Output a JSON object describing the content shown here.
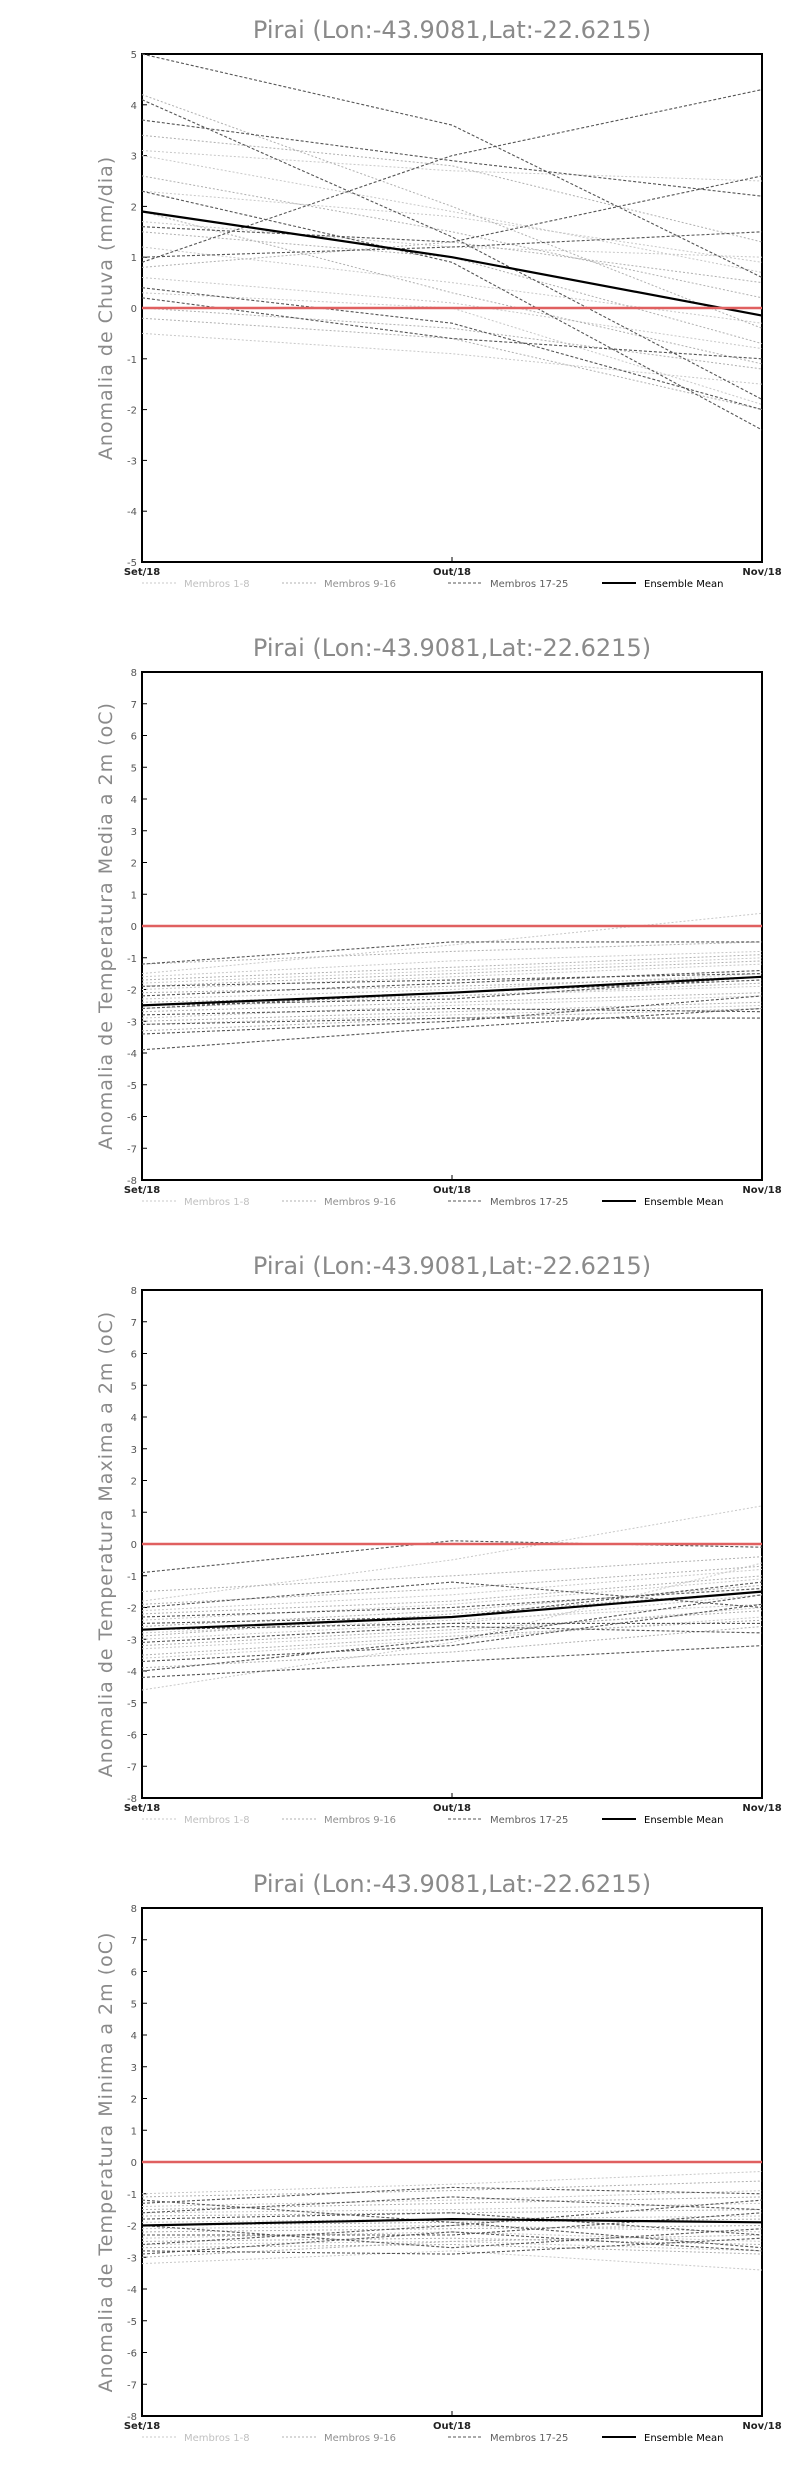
{
  "chart_data": [
    {
      "type": "line",
      "title": "Pirai (Lon:-43.9081,Lat:-22.6215)",
      "ylabel": "Anomalia de Chuva (mm/dia)",
      "x": [
        "Set/18",
        "Out/18",
        "Nov/18"
      ],
      "ylim": [
        -5,
        5
      ],
      "yticks": [
        -5,
        -4,
        -3,
        -2,
        -1,
        0,
        1,
        2,
        3,
        4,
        5
      ],
      "reference_value": 0,
      "legend": [
        "Membros 1-8",
        "Membros 9-16",
        "Membros 17-25",
        "Ensemble Mean"
      ],
      "series": [
        {
          "group": 0,
          "values": [
            3.1,
            2.7,
            2.5
          ]
        },
        {
          "group": 0,
          "values": [
            2.3,
            1.8,
            0.9
          ]
        },
        {
          "group": 0,
          "values": [
            1.2,
            0.5,
            -0.3
          ]
        },
        {
          "group": 0,
          "values": [
            0.6,
            0.1,
            -0.8
          ]
        },
        {
          "group": 0,
          "values": [
            -0.5,
            -0.9,
            -1.5
          ]
        },
        {
          "group": 0,
          "values": [
            3.0,
            1.9,
            0.7
          ]
        },
        {
          "group": 0,
          "values": [
            1.7,
            1.2,
            1.0
          ]
        },
        {
          "group": 0,
          "values": [
            0.3,
            0.0,
            -1.9
          ]
        },
        {
          "group": 1,
          "values": [
            4.2,
            2.0,
            -0.4
          ]
        },
        {
          "group": 1,
          "values": [
            2.6,
            1.5,
            0.2
          ]
        },
        {
          "group": 1,
          "values": [
            1.9,
            0.3,
            -1.1
          ]
        },
        {
          "group": 1,
          "values": [
            0.8,
            1.3,
            0.5
          ]
        },
        {
          "group": 1,
          "values": [
            0.0,
            -0.4,
            -1.2
          ]
        },
        {
          "group": 1,
          "values": [
            1.5,
            1.0,
            -0.7
          ]
        },
        {
          "group": 1,
          "values": [
            3.4,
            2.8,
            1.3
          ]
        },
        {
          "group": 1,
          "values": [
            -0.2,
            -0.6,
            -2.0
          ]
        },
        {
          "group": 2,
          "values": [
            5.0,
            3.6,
            0.6
          ]
        },
        {
          "group": 2,
          "values": [
            3.7,
            2.9,
            2.2
          ]
        },
        {
          "group": 2,
          "values": [
            4.1,
            1.4,
            -1.8
          ]
        },
        {
          "group": 2,
          "values": [
            2.3,
            0.9,
            -2.4
          ]
        },
        {
          "group": 2,
          "values": [
            1.6,
            1.3,
            2.6
          ]
        },
        {
          "group": 2,
          "values": [
            0.9,
            3.0,
            4.3
          ]
        },
        {
          "group": 2,
          "values": [
            0.4,
            -0.3,
            -2.0
          ]
        },
        {
          "group": 2,
          "values": [
            1.0,
            1.2,
            1.5
          ]
        },
        {
          "group": 2,
          "values": [
            0.2,
            -0.6,
            -1.0
          ]
        },
        {
          "group": 3,
          "values": [
            1.9,
            1.0,
            -0.15
          ]
        }
      ]
    },
    {
      "type": "line",
      "title": "Pirai (Lon:-43.9081,Lat:-22.6215)",
      "ylabel": "Anomalia de Temperatura Media a 2m (oC)",
      "x": [
        "Set/18",
        "Out/18",
        "Nov/18"
      ],
      "ylim": [
        -8,
        8
      ],
      "yticks": [
        -8,
        -7,
        -6,
        -5,
        -4,
        -3,
        -2,
        -1,
        0,
        1,
        2,
        3,
        4,
        5,
        6,
        7,
        8
      ],
      "reference_value": 0,
      "legend": [
        "Membros 1-8",
        "Membros 9-16",
        "Membros 17-25",
        "Ensemble Mean"
      ],
      "series": [
        {
          "group": 0,
          "values": [
            -1.5,
            -0.6,
            0.4
          ]
        },
        {
          "group": 0,
          "values": [
            -2.0,
            -1.6,
            -1.2
          ]
        },
        {
          "group": 0,
          "values": [
            -2.6,
            -2.2,
            -1.9
          ]
        },
        {
          "group": 0,
          "values": [
            -3.1,
            -2.8,
            -2.5
          ]
        },
        {
          "group": 0,
          "values": [
            -1.8,
            -1.4,
            -1.0
          ]
        },
        {
          "group": 0,
          "values": [
            -2.3,
            -2.0,
            -1.5
          ]
        },
        {
          "group": 0,
          "values": [
            -2.9,
            -2.5,
            -2.2
          ]
        },
        {
          "group": 0,
          "values": [
            -1.6,
            -1.1,
            -0.8
          ]
        },
        {
          "group": 1,
          "values": [
            -1.2,
            -0.8,
            -0.5
          ]
        },
        {
          "group": 1,
          "values": [
            -2.1,
            -1.9,
            -1.6
          ]
        },
        {
          "group": 1,
          "values": [
            -2.7,
            -2.4,
            -2.1
          ]
        },
        {
          "group": 1,
          "values": [
            -3.3,
            -2.9,
            -2.6
          ]
        },
        {
          "group": 1,
          "values": [
            -1.9,
            -1.5,
            -1.1
          ]
        },
        {
          "group": 1,
          "values": [
            -2.4,
            -2.2,
            -1.8
          ]
        },
        {
          "group": 1,
          "values": [
            -3.0,
            -2.7,
            -2.4
          ]
        },
        {
          "group": 1,
          "values": [
            -1.7,
            -1.3,
            -0.9
          ]
        },
        {
          "group": 2,
          "values": [
            -3.9,
            -3.2,
            -2.6
          ]
        },
        {
          "group": 2,
          "values": [
            -1.2,
            -0.5,
            -0.5
          ]
        },
        {
          "group": 2,
          "values": [
            -2.5,
            -2.3,
            -1.6
          ]
        },
        {
          "group": 2,
          "values": [
            -3.1,
            -2.9,
            -2.9
          ]
        },
        {
          "group": 2,
          "values": [
            -2.2,
            -1.8,
            -1.4
          ]
        },
        {
          "group": 2,
          "values": [
            -2.8,
            -2.6,
            -2.7
          ]
        },
        {
          "group": 2,
          "values": [
            -1.9,
            -1.7,
            -1.5
          ]
        },
        {
          "group": 2,
          "values": [
            -3.4,
            -3.0,
            -2.2
          ]
        },
        {
          "group": 2,
          "values": [
            -2.6,
            -2.1,
            -1.7
          ]
        },
        {
          "group": 3,
          "values": [
            -2.5,
            -2.1,
            -1.6
          ]
        }
      ]
    },
    {
      "type": "line",
      "title": "Pirai (Lon:-43.9081,Lat:-22.6215)",
      "ylabel": "Anomalia de Temperatura Maxima a 2m (oC)",
      "x": [
        "Set/18",
        "Out/18",
        "Nov/18"
      ],
      "ylim": [
        -8,
        8
      ],
      "yticks": [
        -8,
        -7,
        -6,
        -5,
        -4,
        -3,
        -2,
        -1,
        0,
        1,
        2,
        3,
        4,
        5,
        6,
        7,
        8
      ],
      "reference_value": 0,
      "legend": [
        "Membros 1-8",
        "Membros 9-16",
        "Membros 17-25",
        "Ensemble Mean"
      ],
      "series": [
        {
          "group": 0,
          "values": [
            -1.8,
            -0.5,
            1.2
          ]
        },
        {
          "group": 0,
          "values": [
            -2.4,
            -1.9,
            -1.1
          ]
        },
        {
          "group": 0,
          "values": [
            -3.0,
            -2.5,
            -1.6
          ]
        },
        {
          "group": 0,
          "values": [
            -3.6,
            -3.0,
            -2.3
          ]
        },
        {
          "group": 0,
          "values": [
            -4.6,
            -3.1,
            -0.6
          ]
        },
        {
          "group": 0,
          "values": [
            -2.1,
            -1.6,
            -0.8
          ]
        },
        {
          "group": 0,
          "values": [
            -2.8,
            -2.4,
            -1.9
          ]
        },
        {
          "group": 0,
          "values": [
            -3.3,
            -2.8,
            -2.0
          ]
        },
        {
          "group": 1,
          "values": [
            -1.5,
            -1.0,
            -0.4
          ]
        },
        {
          "group": 1,
          "values": [
            -2.6,
            -2.1,
            -1.3
          ]
        },
        {
          "group": 1,
          "values": [
            -3.2,
            -2.7,
            -2.1
          ]
        },
        {
          "group": 1,
          "values": [
            -3.9,
            -3.4,
            -2.6
          ]
        },
        {
          "group": 1,
          "values": [
            -2.2,
            -1.8,
            -1.0
          ]
        },
        {
          "group": 1,
          "values": [
            -2.9,
            -2.2,
            -1.5
          ]
        },
        {
          "group": 1,
          "values": [
            -3.5,
            -2.9,
            -2.4
          ]
        },
        {
          "group": 1,
          "values": [
            -1.9,
            -1.4,
            -0.7
          ]
        },
        {
          "group": 2,
          "values": [
            -0.9,
            0.1,
            -0.1
          ]
        },
        {
          "group": 2,
          "values": [
            -4.2,
            -3.7,
            -3.2
          ]
        },
        {
          "group": 2,
          "values": [
            -2.5,
            -2.3,
            -1.2
          ]
        },
        {
          "group": 2,
          "values": [
            -3.1,
            -2.6,
            -2.8
          ]
        },
        {
          "group": 2,
          "values": [
            -2.0,
            -1.2,
            -2.0
          ]
        },
        {
          "group": 2,
          "values": [
            -3.7,
            -3.2,
            -1.9
          ]
        },
        {
          "group": 2,
          "values": [
            -2.7,
            -2.5,
            -2.5
          ]
        },
        {
          "group": 2,
          "values": [
            -4.0,
            -3.0,
            -1.6
          ]
        },
        {
          "group": 2,
          "values": [
            -2.3,
            -2.0,
            -1.4
          ]
        },
        {
          "group": 3,
          "values": [
            -2.7,
            -2.3,
            -1.5
          ]
        }
      ]
    },
    {
      "type": "line",
      "title": "Pirai (Lon:-43.9081,Lat:-22.6215)",
      "ylabel": "Anomalia de Temperatura Minima a 2m (oC)",
      "x": [
        "Set/18",
        "Out/18",
        "Nov/18"
      ],
      "ylim": [
        -8,
        8
      ],
      "yticks": [
        -8,
        -7,
        -6,
        -5,
        -4,
        -3,
        -2,
        -1,
        0,
        1,
        2,
        3,
        4,
        5,
        6,
        7,
        8
      ],
      "reference_value": 0,
      "legend": [
        "Membros 1-8",
        "Membros 9-16",
        "Membros 17-25",
        "Ensemble Mean"
      ],
      "series": [
        {
          "group": 0,
          "values": [
            -1.0,
            -0.7,
            -0.3
          ]
        },
        {
          "group": 0,
          "values": [
            -1.6,
            -1.5,
            -1.3
          ]
        },
        {
          "group": 0,
          "values": [
            -2.1,
            -2.0,
            -2.2
          ]
        },
        {
          "group": 0,
          "values": [
            -2.6,
            -2.5,
            -2.8
          ]
        },
        {
          "group": 0,
          "values": [
            -3.2,
            -2.8,
            -3.4
          ]
        },
        {
          "group": 0,
          "values": [
            -1.4,
            -1.2,
            -0.9
          ]
        },
        {
          "group": 0,
          "values": [
            -1.9,
            -1.8,
            -1.7
          ]
        },
        {
          "group": 0,
          "values": [
            -2.4,
            -2.2,
            -2.5
          ]
        },
        {
          "group": 1,
          "values": [
            -1.1,
            -0.9,
            -0.6
          ]
        },
        {
          "group": 1,
          "values": [
            -1.7,
            -1.6,
            -1.5
          ]
        },
        {
          "group": 1,
          "values": [
            -2.2,
            -2.1,
            -2.0
          ]
        },
        {
          "group": 1,
          "values": [
            -2.7,
            -2.6,
            -2.9
          ]
        },
        {
          "group": 1,
          "values": [
            -3.0,
            -2.5,
            -2.3
          ]
        },
        {
          "group": 1,
          "values": [
            -1.5,
            -1.3,
            -1.1
          ]
        },
        {
          "group": 1,
          "values": [
            -2.0,
            -1.9,
            -1.8
          ]
        },
        {
          "group": 1,
          "values": [
            -2.5,
            -2.4,
            -2.6
          ]
        },
        {
          "group": 2,
          "values": [
            -1.3,
            -0.8,
            -1.0
          ]
        },
        {
          "group": 2,
          "values": [
            -2.8,
            -2.9,
            -2.4
          ]
        },
        {
          "group": 2,
          "values": [
            -1.8,
            -1.6,
            -2.3
          ]
        },
        {
          "group": 2,
          "values": [
            -2.3,
            -2.3,
            -1.6
          ]
        },
        {
          "group": 2,
          "values": [
            -1.2,
            -1.9,
            -2.7
          ]
        },
        {
          "group": 2,
          "values": [
            -2.6,
            -2.0,
            -1.2
          ]
        },
        {
          "group": 2,
          "values": [
            -2.0,
            -2.7,
            -2.1
          ]
        },
        {
          "group": 2,
          "values": [
            -1.6,
            -1.1,
            -1.5
          ]
        },
        {
          "group": 2,
          "values": [
            -2.9,
            -2.2,
            -2.8
          ]
        },
        {
          "group": 3,
          "values": [
            -2.0,
            -1.8,
            -1.9
          ]
        }
      ]
    }
  ],
  "styles": {
    "axis_color": "#000000",
    "reference_line_color": "#e06060",
    "group_colors": [
      "#c8c8c8",
      "#b0b0b0",
      "#555555",
      "#000000"
    ],
    "legend_text_colors": [
      "#c0c0c0",
      "#909090",
      "#606060",
      "#000000"
    ]
  }
}
